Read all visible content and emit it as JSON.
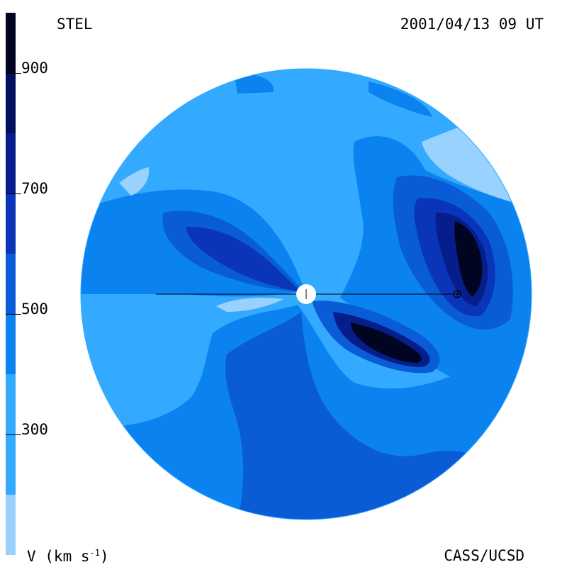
{
  "header": {
    "source": "STEL",
    "timestamp": "2001/04/13 09 UT"
  },
  "footer": {
    "unit_label": "V (km s",
    "unit_exp": "-1",
    "unit_close": ")",
    "credit": "CASS/UCSD"
  },
  "colorbar": {
    "ticks": [
      "900",
      "700",
      "500",
      "300"
    ],
    "tick_values": [
      900,
      700,
      500,
      300
    ],
    "range": [
      100,
      1000
    ],
    "levels": [
      {
        "from": 100,
        "to": 200,
        "color": "#99d1ff"
      },
      {
        "from": 200,
        "to": 400,
        "color": "#33aaff"
      },
      {
        "from": 400,
        "to": 500,
        "color": "#0a82ef"
      },
      {
        "from": 500,
        "to": 600,
        "color": "#0a5cd6"
      },
      {
        "from": 600,
        "to": 700,
        "color": "#0a35b8"
      },
      {
        "from": 700,
        "to": 800,
        "color": "#061e8c"
      },
      {
        "from": 800,
        "to": 900,
        "color": "#03115c"
      },
      {
        "from": 900,
        "to": 1000,
        "color": "#010522"
      }
    ]
  },
  "colors": {
    "background": "#ffffff",
    "ink": "#000000",
    "sun": "#ffffff"
  }
}
